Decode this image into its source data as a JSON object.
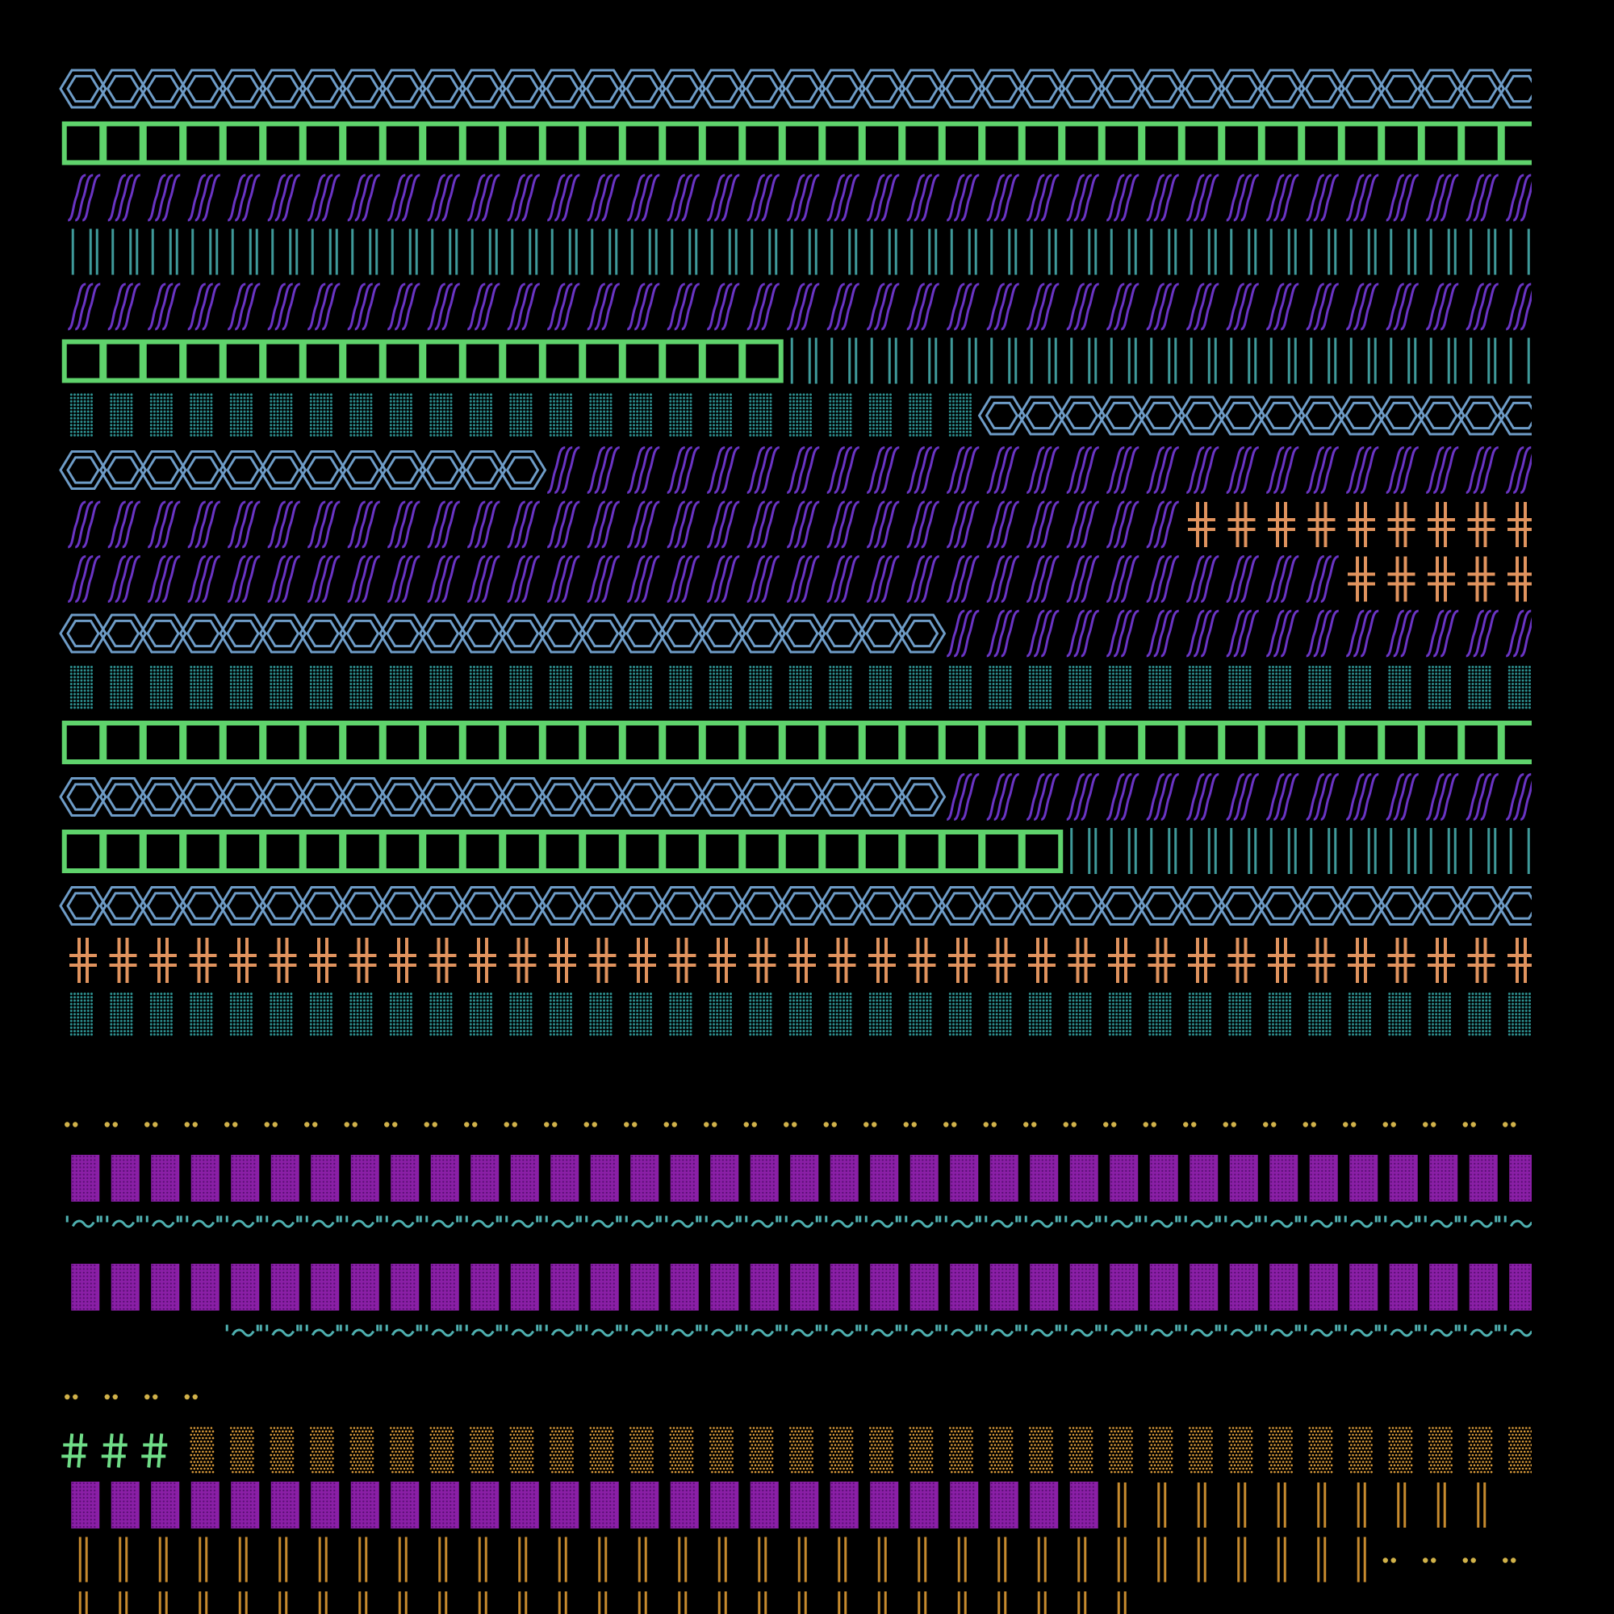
{
  "background": "#000000",
  "palette": {
    "hex": "#6e9cc7",
    "box": "#5fd36c",
    "slash": "#6a34c4",
    "bar": "#3f9a9a",
    "dots": "#2d8f8f",
    "cross": "#e0935e",
    "pair": "#d1b24a",
    "block": "#8a1fa6",
    "block_dot": "#5a0f73",
    "tilde": "#4fb0b0",
    "hash": "#6fdc87",
    "sand": "#d99a3a",
    "dbar": "#c68a2e"
  },
  "glyph_tiles": [
    "hexagon-chain",
    "green-box",
    "italic-triple-slash",
    "teal-bars",
    "teal-dot-block",
    "orange-double-cross",
    "yellow-dot-pair",
    "purple-dotted-block",
    "teal-tilde-quote",
    "green-hash",
    "orange-speckle-block",
    "orange-double-bar"
  ],
  "rows": [
    [
      [
        "hex",
        37
      ]
    ],
    [
      [
        "box",
        37
      ]
    ],
    [
      [
        "slash",
        37
      ]
    ],
    [
      [
        "bar",
        37
      ]
    ],
    [
      [
        "slash",
        37
      ]
    ],
    [
      [
        "box",
        18
      ],
      [
        "bar",
        19
      ]
    ],
    [
      [
        "dots",
        23
      ],
      [
        "hex",
        14
      ]
    ],
    [
      [
        "hex",
        12
      ],
      [
        "slash",
        25
      ]
    ],
    [
      [
        "slash",
        28
      ],
      [
        "cross",
        9
      ]
    ],
    [
      [
        "slash",
        32
      ],
      [
        "cross",
        5
      ]
    ],
    [
      [
        "hex",
        22
      ],
      [
        "slash",
        15
      ]
    ],
    [
      [
        "dots",
        37
      ]
    ],
    [
      [
        "box",
        37
      ]
    ],
    [
      [
        "hex",
        22
      ],
      [
        "slash",
        15
      ]
    ],
    [
      [
        "box",
        25
      ],
      [
        "bar",
        12
      ]
    ],
    [
      [
        "hex",
        37
      ]
    ],
    [
      [
        "cross",
        37
      ]
    ],
    [
      [
        "dots",
        37
      ]
    ],
    [
      [
        "none",
        37
      ]
    ],
    [
      [
        "pair",
        37
      ]
    ],
    [
      [
        "block",
        37
      ]
    ],
    [
      [
        "tilde",
        37
      ]
    ],
    [
      [
        "block",
        37
      ]
    ],
    [
      [
        "none",
        4
      ],
      [
        "tilde",
        33
      ]
    ],
    [
      [
        "pair",
        4
      ]
    ],
    [
      [
        "hash",
        3
      ],
      [
        "sand",
        34
      ]
    ],
    [
      [
        "block",
        26
      ],
      [
        "dbar",
        10
      ]
    ],
    [
      [
        "dbar",
        33
      ],
      [
        "pair",
        4
      ]
    ],
    [
      [
        "dbar",
        27
      ]
    ]
  ]
}
